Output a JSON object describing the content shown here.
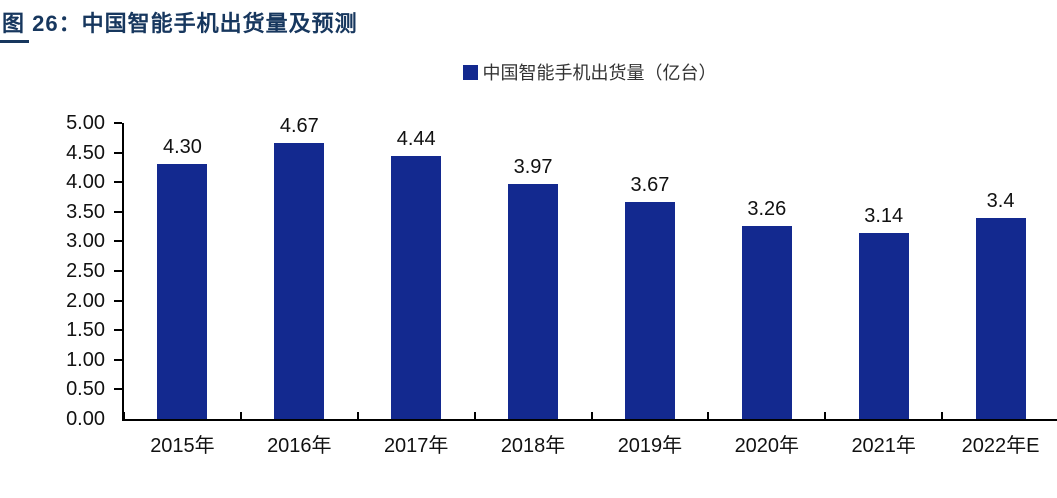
{
  "figure": {
    "title": "图 26：中国智能手机出货量及预测"
  },
  "legend": {
    "label": "中国智能手机出货量（亿台）"
  },
  "colors": {
    "title": "#17375E",
    "bar": "#13298F",
    "axis": "#000000",
    "text": "#111111"
  },
  "chart_data": {
    "type": "bar",
    "title": "图 26：中国智能手机出货量及预测",
    "legend_entries": [
      "中国智能手机出货量（亿台）"
    ],
    "legend_position": "top-center",
    "categories": [
      "2015年",
      "2016年",
      "2017年",
      "2018年",
      "2019年",
      "2020年",
      "2021年",
      "2022年E"
    ],
    "values": [
      4.3,
      4.67,
      4.44,
      3.97,
      3.67,
      3.26,
      3.14,
      3.4
    ],
    "value_labels": [
      "4.30",
      "4.67",
      "4.44",
      "3.97",
      "3.67",
      "3.26",
      "3.14",
      "3.4"
    ],
    "xlabel": "",
    "ylabel": "",
    "ylim": [
      0,
      5
    ],
    "ytick_step": 0.5,
    "ytick_labels": [
      "0.00",
      "0.50",
      "1.00",
      "1.50",
      "2.00",
      "2.50",
      "3.00",
      "3.50",
      "4.00",
      "4.50",
      "5.00"
    ],
    "grid": false,
    "bar_color": "#13298F"
  }
}
